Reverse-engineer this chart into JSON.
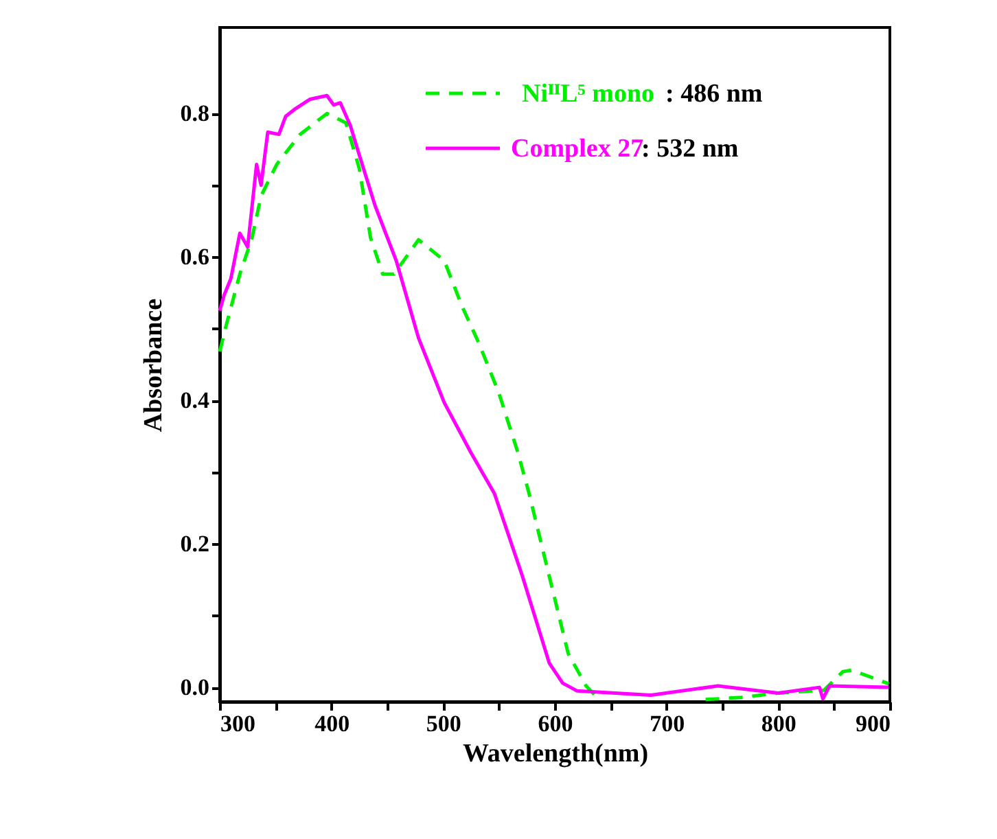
{
  "chart_data": {
    "type": "line",
    "xlabel": "Wavelength(nm)",
    "ylabel": "Absorbance",
    "xlim": [
      300,
      900
    ],
    "ylim": [
      -0.02,
      0.92
    ],
    "xticks": [
      300,
      {
        "value": 350,
        "label": null
      },
      400,
      {
        "value": 450,
        "label": null
      },
      500,
      {
        "value": 550,
        "label": null
      },
      600,
      {
        "value": 650,
        "label": null
      },
      700,
      {
        "value": 750,
        "label": null
      },
      800,
      {
        "value": 850,
        "label": null
      },
      900
    ],
    "yticks": [
      {
        "value": 0,
        "label": "0.0"
      },
      {
        "value": 0.1,
        "label": null
      },
      {
        "value": 0.2,
        "label": "0.2"
      },
      {
        "value": 0.3,
        "label": null
      },
      {
        "value": 0.4,
        "label": "0.4"
      },
      {
        "value": 0.5,
        "label": null
      },
      {
        "value": 0.6,
        "label": "0.6"
      },
      {
        "value": 0.7,
        "label": null
      },
      {
        "value": 0.8,
        "label": "0.8"
      }
    ],
    "grid": false,
    "legend": "top right",
    "marker": "none",
    "annotations": [
      ": 486 nm",
      ": 532 nm"
    ],
    "series": [
      {
        "name": "NiᴵᴵL⁵ mono",
        "color": "#00ee00",
        "line_style": "dashed",
        "x": [
          300,
          306,
          318,
          329,
          337,
          351,
          372,
          396,
          413,
          425,
          435,
          446,
          456,
          478,
          501,
          517,
          532,
          550,
          567,
          577,
          595,
          612,
          628,
          636,
          661,
          700,
          735,
          767,
          800,
          841,
          858,
          866,
          899
        ],
        "values": [
          0.468,
          0.506,
          0.576,
          0.627,
          0.685,
          0.729,
          0.771,
          0.8,
          0.787,
          0.723,
          0.627,
          0.576,
          0.576,
          0.624,
          0.595,
          0.531,
          0.48,
          0.41,
          0.327,
          0.27,
          0.155,
          0.047,
          0.002,
          -0.011,
          null,
          null,
          -0.017,
          -0.014,
          -0.008,
          -0.004,
          0.022,
          0.024,
          0.005
        ]
      },
      {
        "name": "Complex 27",
        "color": "#ff00ff",
        "line_style": "solid",
        "x": [
          300,
          304,
          310,
          318,
          325,
          333,
          337,
          343,
          353,
          359,
          368,
          381,
          396,
          402,
          408,
          417,
          425,
          439,
          458,
          478,
          501,
          525,
          546,
          571,
          595,
          607,
          620,
          686,
          746,
          800,
          837,
          840,
          846,
          899
        ],
        "values": [
          0.525,
          0.547,
          0.57,
          0.633,
          0.614,
          0.729,
          0.7,
          0.774,
          0.771,
          0.796,
          0.807,
          0.82,
          0.825,
          0.812,
          0.815,
          0.783,
          0.742,
          0.672,
          0.595,
          0.487,
          0.397,
          0.327,
          0.27,
          0.155,
          0.034,
          0.006,
          -0.005,
          -0.011,
          0.002,
          -0.008,
          0.0,
          -0.016,
          0.002,
          0.0
        ]
      }
    ]
  }
}
